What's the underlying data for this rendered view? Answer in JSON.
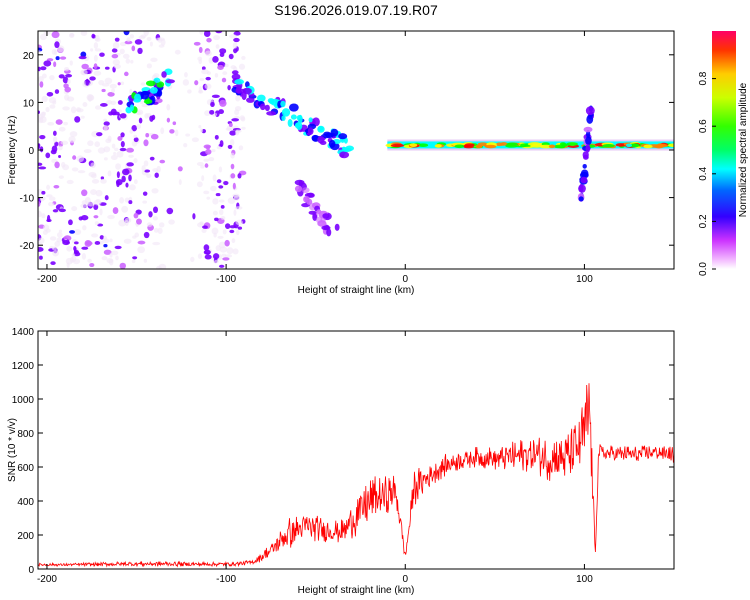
{
  "title": "S196.2026.019.07.19.R07",
  "chart_data": [
    {
      "type": "heatmap",
      "name": "spectrogram",
      "xlabel": "Height of straight line (km)",
      "ylabel": "Frequency (Hz)",
      "xlim": [
        -205,
        150
      ],
      "ylim": [
        -25,
        25
      ],
      "xticks": [
        -200,
        -100,
        0,
        100
      ],
      "yticks": [
        -20,
        -10,
        0,
        10,
        20
      ],
      "features": [
        {
          "label": "scattered low-amplitude noise",
          "x": [
            -205,
            -90
          ],
          "freq": [
            -25,
            25
          ],
          "amplitude": 0.15
        },
        {
          "label": "bright cluster",
          "x": [
            -155,
            -130
          ],
          "freq": [
            9,
            15
          ],
          "amplitude": 0.45
        },
        {
          "label": "descending trace",
          "x": [
            -95,
            -30
          ],
          "freq": [
            14,
            0
          ],
          "amplitude": 0.4
        },
        {
          "label": "secondary diagonal branch",
          "x": [
            -60,
            -38
          ],
          "freq": [
            -8,
            -18
          ],
          "amplitude": 0.2
        },
        {
          "label": "steady line",
          "x": [
            -10,
            150
          ],
          "freq": [
            1,
            1
          ],
          "amplitude": 0.95
        },
        {
          "label": "spike near 100 km",
          "x": [
            98,
            104
          ],
          "freq": [
            -10,
            9
          ],
          "amplitude": 0.3
        }
      ],
      "colorbar": {
        "label": "Normalized spectral amplitude",
        "range": [
          0,
          1
        ],
        "ticks": [
          "0.0",
          "0.2",
          "0.4",
          "0.6",
          "0.8"
        ],
        "colors": [
          "#f2e6f7",
          "#cc66ff",
          "#7a00ff",
          "#0000ff",
          "#00ffff",
          "#00ff00",
          "#ffff00",
          "#ff8000",
          "#ff0000"
        ]
      }
    },
    {
      "type": "line",
      "name": "snr",
      "xlabel": "Height of straight line (km)",
      "ylabel": "SNR (10 * v/v)",
      "xlim": [
        -205,
        150
      ],
      "ylim": [
        0,
        1400
      ],
      "xticks": [
        -200,
        -100,
        0,
        100
      ],
      "yticks": [
        0,
        200,
        400,
        600,
        800,
        1000,
        1200,
        1400
      ],
      "color": "#ff0000",
      "series": {
        "x": [
          -205,
          -190,
          -170,
          -150,
          -130,
          -110,
          -95,
          -85,
          -75,
          -65,
          -55,
          -45,
          -35,
          -28,
          -22,
          -15,
          -10,
          -5,
          0,
          5,
          10,
          20,
          30,
          40,
          50,
          60,
          70,
          80,
          90,
          95,
          100,
          103,
          106,
          108,
          110,
          120,
          130,
          140,
          150
        ],
        "y": [
          25,
          25,
          28,
          30,
          30,
          28,
          30,
          40,
          110,
          210,
          250,
          230,
          220,
          300,
          380,
          420,
          430,
          450,
          70,
          480,
          520,
          600,
          640,
          660,
          650,
          660,
          680,
          650,
          660,
          700,
          800,
          950,
          80,
          700,
          680,
          680,
          670,
          690,
          670
        ],
        "spread": [
          15,
          15,
          20,
          25,
          25,
          20,
          20,
          25,
          80,
          160,
          140,
          120,
          120,
          200,
          250,
          220,
          200,
          180,
          40,
          180,
          160,
          120,
          100,
          100,
          120,
          150,
          180,
          220,
          260,
          300,
          400,
          450,
          60,
          120,
          80,
          80,
          90,
          80,
          80
        ]
      }
    }
  ]
}
